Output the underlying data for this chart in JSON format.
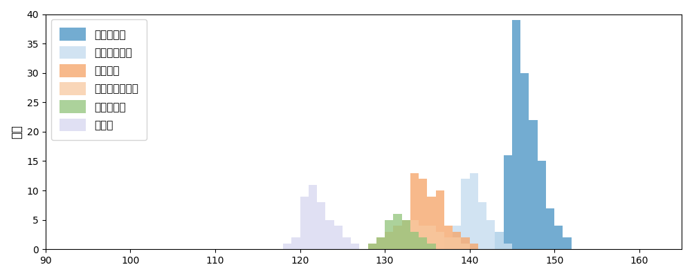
{
  "ylabel": "球数",
  "xlim": [
    90,
    165
  ],
  "ylim": [
    0,
    40
  ],
  "xticks": [
    90,
    100,
    110,
    120,
    130,
    140,
    150,
    160
  ],
  "yticks": [
    0,
    5,
    10,
    15,
    20,
    25,
    30,
    35,
    40
  ],
  "series": [
    {
      "name": "ストレート",
      "color": "#5b9ec9",
      "alpha": 0.85,
      "counts": {
        "143": 3,
        "144": 16,
        "145": 39,
        "146": 30,
        "147": 22,
        "148": 15,
        "149": 7,
        "150": 4,
        "151": 2
      }
    },
    {
      "name": "カットボール",
      "color": "#c9dff0",
      "alpha": 0.85,
      "counts": {
        "137": 2,
        "138": 4,
        "139": 12,
        "140": 13,
        "141": 8,
        "142": 5,
        "143": 3,
        "144": 1
      }
    },
    {
      "name": "フォーク",
      "color": "#f5a86e",
      "alpha": 0.8,
      "counts": {
        "128": 1,
        "129": 2,
        "130": 3,
        "131": 4,
        "132": 5,
        "133": 13,
        "134": 12,
        "135": 9,
        "136": 10,
        "137": 4,
        "138": 3,
        "139": 2,
        "140": 1
      }
    },
    {
      "name": "チェンジアップ",
      "color": "#f8c9a0",
      "alpha": 0.75,
      "counts": {
        "128": 1,
        "129": 2,
        "130": 3,
        "131": 4,
        "132": 5,
        "133": 5,
        "134": 4,
        "135": 4,
        "136": 3,
        "137": 2,
        "138": 2,
        "139": 1
      }
    },
    {
      "name": "スライダー",
      "color": "#90c47a",
      "alpha": 0.75,
      "counts": {
        "128": 1,
        "129": 2,
        "130": 5,
        "131": 6,
        "132": 5,
        "133": 3,
        "134": 2,
        "135": 1
      }
    },
    {
      "name": "カーブ",
      "color": "#d9d9f0",
      "alpha": 0.8,
      "counts": {
        "118": 1,
        "119": 2,
        "120": 9,
        "121": 11,
        "122": 8,
        "123": 5,
        "124": 4,
        "125": 2,
        "126": 1
      }
    }
  ]
}
